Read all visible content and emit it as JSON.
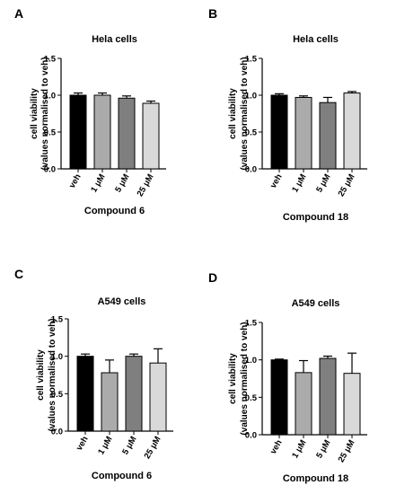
{
  "chart_data": [
    {
      "panel": "A",
      "type": "bar",
      "title": "Hela cells",
      "ylabel": "cell viability",
      "ylabel2": "(values normalised to veh)",
      "xlabel": "Compound 6",
      "categories": [
        "veh",
        "1 μM",
        "5 μM",
        "25 μM"
      ],
      "values": [
        1.0,
        1.0,
        0.96,
        0.89
      ],
      "errors": [
        0.03,
        0.03,
        0.03,
        0.03
      ],
      "ylim": [
        0,
        1.5
      ],
      "yticks": [
        "0.0",
        "0.5",
        "1.0",
        "1.5"
      ]
    },
    {
      "panel": "B",
      "type": "bar",
      "title": "Hela cells",
      "ylabel": "cell viability",
      "ylabel2": "(values normalised to veh)",
      "xlabel": "Compound 18",
      "categories": [
        "veh",
        "1 μM",
        "5 μM",
        "25 μM"
      ],
      "values": [
        1.0,
        0.97,
        0.9,
        1.03
      ],
      "errors": [
        0.02,
        0.02,
        0.07,
        0.02
      ],
      "ylim": [
        0,
        1.5
      ],
      "yticks": [
        "0.0",
        "0.5",
        "1.0",
        "1.5"
      ]
    },
    {
      "panel": "C",
      "type": "bar",
      "title": "A549 cells",
      "ylabel": "cell viability",
      "ylabel2": "(values normalised to veh)",
      "xlabel": "Compound 6",
      "categories": [
        "veh",
        "1 μM",
        "5 μM",
        "25 μM"
      ],
      "values": [
        1.0,
        0.78,
        1.0,
        0.91
      ],
      "errors": [
        0.03,
        0.17,
        0.03,
        0.19
      ],
      "ylim": [
        0,
        1.5
      ],
      "yticks": [
        "0.0",
        "0.5",
        "1.0",
        "1.5"
      ]
    },
    {
      "panel": "D",
      "type": "bar",
      "title": "A549 cells",
      "ylabel": "cell viability",
      "ylabel2": "(values normalised to veh)",
      "xlabel": "Compound 18",
      "categories": [
        "veh",
        "1 μM",
        "5 μM",
        "25 μM"
      ],
      "values": [
        1.0,
        0.83,
        1.02,
        0.82
      ],
      "errors": [
        0.01,
        0.16,
        0.03,
        0.27
      ],
      "ylim": [
        0,
        1.5
      ],
      "yticks": [
        "0.0",
        "0.5",
        "1.0",
        "1.5"
      ]
    }
  ],
  "colors": {
    "bars": [
      "#000000",
      "#ababab",
      "#7f7f7f",
      "#d9d9d9"
    ],
    "axis": "#000000"
  }
}
